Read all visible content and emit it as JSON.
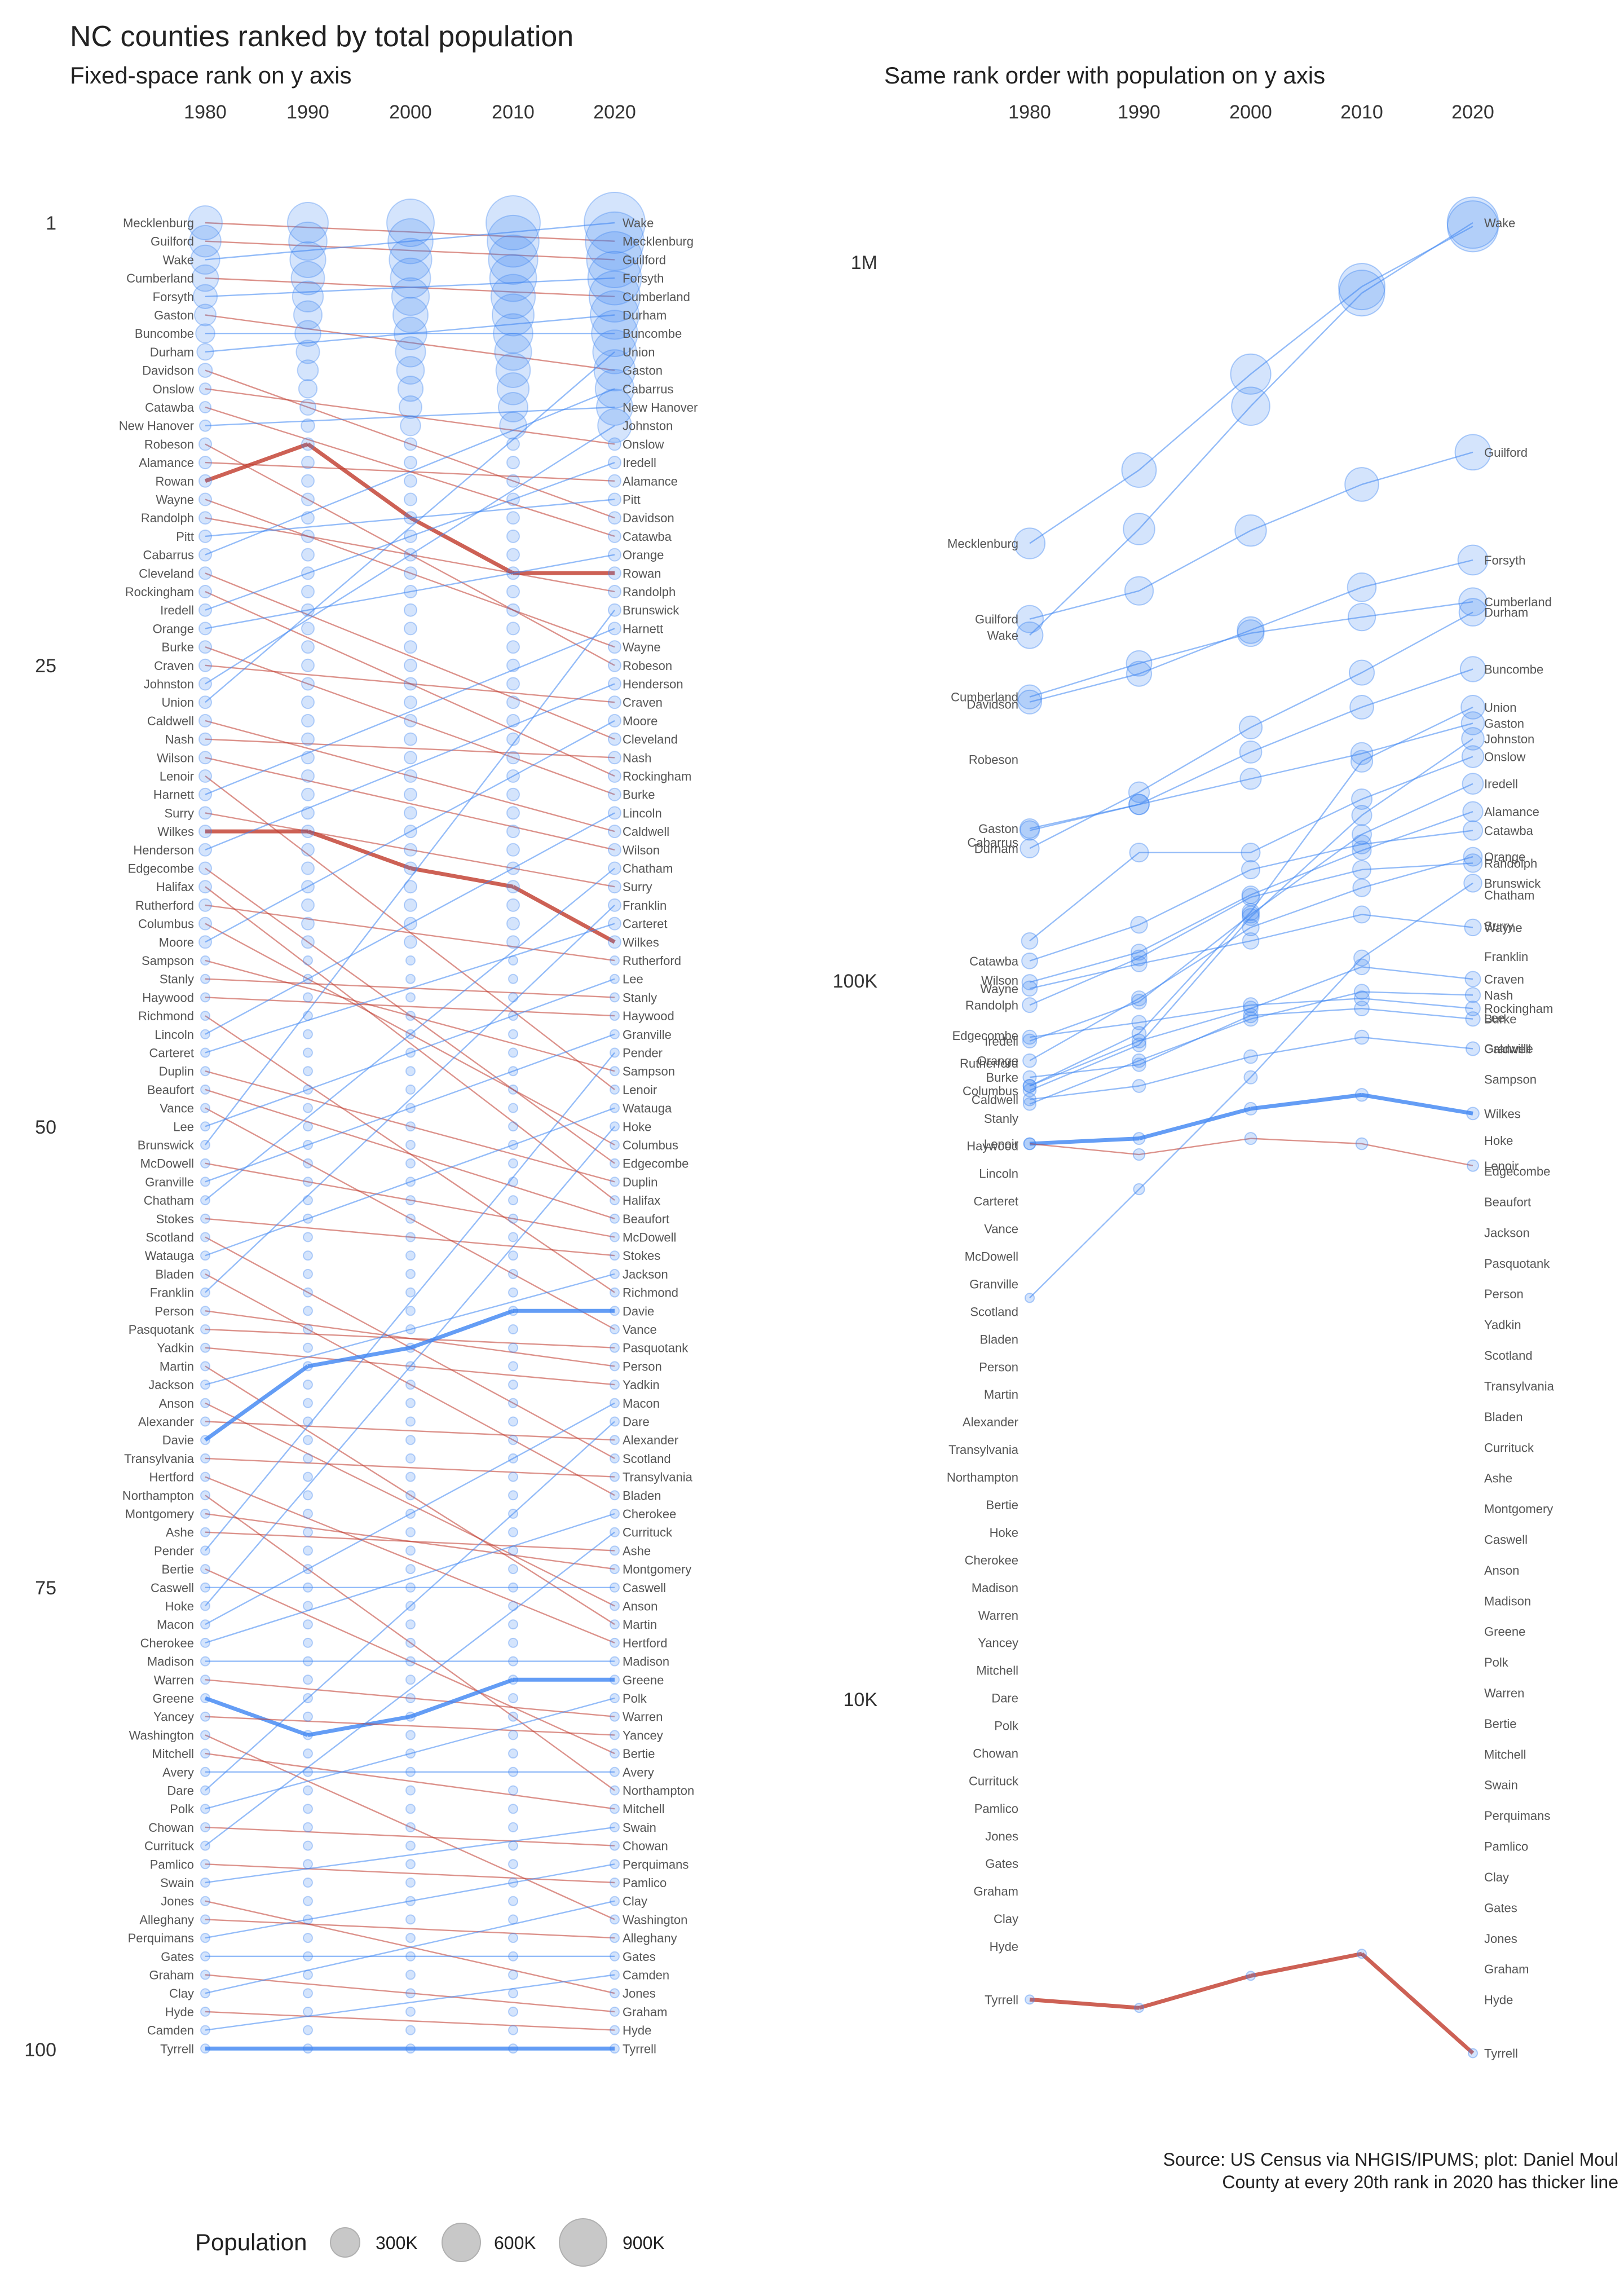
{
  "title": "NC counties ranked by total population",
  "subtitle_left": "Fixed-space rank on y axis",
  "subtitle_right": "Same rank order with population on y axis",
  "years": [
    "1980",
    "1990",
    "2000",
    "2010",
    "2020"
  ],
  "rank_ticks": [
    "1",
    "25",
    "50",
    "75",
    "100"
  ],
  "population_ticks": [
    "1M",
    "100K",
    "10K"
  ],
  "source_line_1": "Source: US Census via NHGIS/IPUMS; plot: Daniel Moul",
  "source_line_2": "County at every 20th rank in 2020 has thicker line",
  "legend": {
    "title": "Population",
    "items": [
      "300K",
      "600K",
      "900K"
    ]
  },
  "colors": {
    "rising": "#3d85f2",
    "falling": "#c0392b",
    "text": "#222222",
    "label": "#555555",
    "legend_fill": "#c8c8c8"
  },
  "chart_data": [
    {
      "type": "line",
      "title": "Fixed-space rank on y axis",
      "x": [
        "1980",
        "1990",
        "2000",
        "2010",
        "2020"
      ],
      "y_axis": "rank",
      "y_ticks": [
        "1",
        "25",
        "50",
        "75",
        "100"
      ],
      "ranked_1980": [
        "Mecklenburg",
        "Guilford",
        "Wake",
        "Cumberland",
        "Forsyth",
        "Gaston",
        "Buncombe",
        "Durham",
        "Davidson",
        "Onslow",
        "Catawba",
        "New Hanover",
        "Robeson",
        "Alamance",
        "Rowan",
        "Wayne",
        "Randolph",
        "Pitt",
        "Cabarrus",
        "Cleveland",
        "Rockingham",
        "Iredell",
        "Orange",
        "Burke",
        "Craven",
        "Johnston",
        "Union",
        "Caldwell",
        "Nash",
        "Wilson",
        "Lenoir",
        "Harnett",
        "Surry",
        "Wilkes",
        "Henderson",
        "Edgecombe",
        "Halifax",
        "Rutherford",
        "Columbus",
        "Moore",
        "Sampson",
        "Stanly",
        "Haywood",
        "Richmond",
        "Lincoln",
        "Carteret",
        "Duplin",
        "Beaufort",
        "Vance",
        "Lee",
        "Brunswick",
        "McDowell",
        "Granville",
        "Chatham",
        "Stokes",
        "Scotland",
        "Watauga",
        "Bladen",
        "Franklin",
        "Person",
        "Pasquotank",
        "Yadkin",
        "Martin",
        "Jackson",
        "Anson",
        "Alexander",
        "Davie",
        "Transylvania",
        "Hertford",
        "Northampton",
        "Montgomery",
        "Ashe",
        "Pender",
        "Bertie",
        "Caswell",
        "Hoke",
        "Macon",
        "Cherokee",
        "Madison",
        "Warren",
        "Greene",
        "Yancey",
        "Washington",
        "Mitchell",
        "Avery",
        "Dare",
        "Polk",
        "Chowan",
        "Currituck",
        "Pamlico",
        "Swain",
        "Jones",
        "Alleghany",
        "Perquimans",
        "Gates",
        "Graham",
        "Clay",
        "Hyde",
        "Camden",
        "Tyrrell"
      ],
      "ranked_2020": [
        "Wake",
        "Mecklenburg",
        "Guilford",
        "Forsyth",
        "Cumberland",
        "Durham",
        "Buncombe",
        "Union",
        "Gaston",
        "Cabarrus",
        "New Hanover",
        "Johnston",
        "Onslow",
        "Iredell",
        "Alamance",
        "Pitt",
        "Davidson",
        "Catawba",
        "Orange",
        "Rowan",
        "Randolph",
        "Brunswick",
        "Harnett",
        "Wayne",
        "Robeson",
        "Henderson",
        "Craven",
        "Moore",
        "Cleveland",
        "Nash",
        "Rockingham",
        "Burke",
        "Lincoln",
        "Caldwell",
        "Wilson",
        "Chatham",
        "Surry",
        "Franklin",
        "Carteret",
        "Wilkes",
        "Rutherford",
        "Lee",
        "Stanly",
        "Haywood",
        "Granville",
        "Pender",
        "Sampson",
        "Lenoir",
        "Watauga",
        "Hoke",
        "Columbus",
        "Edgecombe",
        "Duplin",
        "Halifax",
        "Beaufort",
        "McDowell",
        "Stokes",
        "Jackson",
        "Richmond",
        "Davie",
        "Vance",
        "Pasquotank",
        "Person",
        "Yadkin",
        "Macon",
        "Dare",
        "Alexander",
        "Scotland",
        "Transylvania",
        "Bladen",
        "Cherokee",
        "Currituck",
        "Ashe",
        "Montgomery",
        "Caswell",
        "Anson",
        "Martin",
        "Hertford",
        "Madison",
        "Greene",
        "Polk",
        "Warren",
        "Yancey",
        "Bertie",
        "Avery",
        "Northampton",
        "Mitchell",
        "Swain",
        "Chowan",
        "Perquimans",
        "Pamlico",
        "Clay",
        "Washington",
        "Alleghany",
        "Gates",
        "Camden",
        "Jones",
        "Graham",
        "Hyde",
        "Tyrrell"
      ],
      "highlighted_rank_paths": [
        {
          "county": "Rowan",
          "ranks": [
            15,
            13,
            17,
            20,
            20
          ]
        },
        {
          "county": "Wilkes",
          "ranks": [
            34,
            34,
            36,
            37,
            40
          ]
        },
        {
          "county": "Davie",
          "ranks": [
            67,
            63,
            62,
            60,
            60
          ]
        },
        {
          "county": "Greene",
          "ranks": [
            81,
            83,
            82,
            80,
            80
          ]
        },
        {
          "county": "Tyrrell",
          "ranks": [
            100,
            100,
            100,
            100,
            100
          ]
        }
      ]
    },
    {
      "type": "line",
      "title": "Same rank order with population on y axis",
      "x": [
        "1980",
        "1990",
        "2000",
        "2010",
        "2020"
      ],
      "y_axis": "population (log scale)",
      "y_ticks": [
        "1M",
        "100K",
        "10K"
      ],
      "labels_1980": [
        "Mecklenburg",
        "Guilford",
        "Wake",
        "Cumberland",
        "Gaston",
        "Durham",
        "Davidson",
        "Catawba",
        "Robeson",
        "Wayne",
        "Randolph",
        "Cabarrus",
        "Iredell",
        "Orange",
        "Burke",
        "Caldwell",
        "Wilson",
        "Lenoir",
        "Edgecombe",
        "Rutherford",
        "Columbus",
        "Stanly",
        "Haywood",
        "Lincoln",
        "Carteret",
        "Vance",
        "McDowell",
        "Granville",
        "Scotland",
        "Bladen",
        "Person",
        "Martin",
        "Alexander",
        "Transylvania",
        "Northampton",
        "Bertie",
        "Hoke",
        "Cherokee",
        "Madison",
        "Warren",
        "Yancey",
        "Mitchell",
        "Dare",
        "Polk",
        "Chowan",
        "Currituck",
        "Pamlico",
        "Jones",
        "Gates",
        "Graham",
        "Clay",
        "Hyde",
        "Tyrrell"
      ],
      "labels_2020": [
        "Wake",
        "Guilford",
        "Forsyth",
        "Cumberland",
        "Durham",
        "Buncombe",
        "Union",
        "Gaston",
        "Johnston",
        "Onslow",
        "Iredell",
        "Alamance",
        "Catawba",
        "Orange",
        "Randolph",
        "Brunswick",
        "Wayne",
        "Craven",
        "Nash",
        "Rockingham",
        "Burke",
        "Caldwell",
        "Chatham",
        "Surry",
        "Franklin",
        "Wilkes",
        "Lee",
        "Granville",
        "Sampson",
        "Lenoir",
        "Hoke",
        "Edgecombe",
        "Beaufort",
        "Jackson",
        "Pasquotank",
        "Person",
        "Yadkin",
        "Scotland",
        "Transylvania",
        "Bladen",
        "Currituck",
        "Ashe",
        "Montgomery",
        "Caswell",
        "Anson",
        "Madison",
        "Greene",
        "Polk",
        "Warren",
        "Bertie",
        "Mitchell",
        "Swain",
        "Perquimans",
        "Pamlico",
        "Clay",
        "Gates",
        "Jones",
        "Graham",
        "Hyde",
        "Tyrrell"
      ],
      "population": {
        "Wake": [
          301000,
          423000,
          627000,
          901000,
          1129000
        ],
        "Mecklenburg": [
          404000,
          511000,
          695000,
          920000,
          1116000
        ],
        "Guilford": [
          317000,
          347000,
          421000,
          488000,
          541000
        ],
        "Forsyth": [
          243000,
          266000,
          306000,
          351000,
          383000
        ],
        "Cumberland": [
          247000,
          275000,
          303000,
          319000,
          335000
        ],
        "Durham": [
          152000,
          182000,
          224000,
          267000,
          324000
        ],
        "Buncombe": [
          161000,
          175000,
          207000,
          239000,
          270000
        ],
        "Union": [
          71000,
          84000,
          124000,
          201000,
          239000
        ],
        "Gaston": [
          162000,
          175000,
          190000,
          206000,
          227000
        ],
        "Johnston": [
          70000,
          81000,
          122000,
          169000,
          216000
        ],
        "Onslow": [
          113000,
          150000,
          150000,
          178000,
          204000
        ],
        "Iredell": [
          82000,
          93000,
          123000,
          159000,
          187000
        ],
        "Alamance": [
          99000,
          109000,
          131000,
          151000,
          171000
        ],
        "Catawba": [
          106000,
          119000,
          142000,
          154000,
          161000
        ],
        "Orange": [
          77000,
          94000,
          118000,
          134000,
          148000
        ],
        "Randolph": [
          92000,
          107000,
          130000,
          142000,
          145000
        ],
        "Brunswick": [
          36000,
          51000,
          73000,
          107000,
          136000
        ],
        "Wayne": [
          97000,
          105000,
          113000,
          123000,
          118000
        ],
        "Craven": [
          71000,
          82000,
          91000,
          104000,
          100000
        ],
        "Nash": [
          67000,
          77000,
          88000,
          96000,
          95000
        ],
        "Rockingham": [
          83000,
          87000,
          92000,
          94000,
          91000
        ],
        "Burke": [
          73000,
          76000,
          89000,
          91000,
          88000
        ],
        "Caldwell": [
          68000,
          71000,
          78000,
          83000,
          80000
        ],
        "Wilkes": [
          59000,
          60000,
          66000,
          69000,
          65000
        ],
        "Lenoir": [
          59000,
          57000,
          60000,
          59000,
          55000
        ],
        "Tyrrell": [
          3800,
          3700,
          4100,
          4400,
          3200
        ]
      }
    }
  ]
}
